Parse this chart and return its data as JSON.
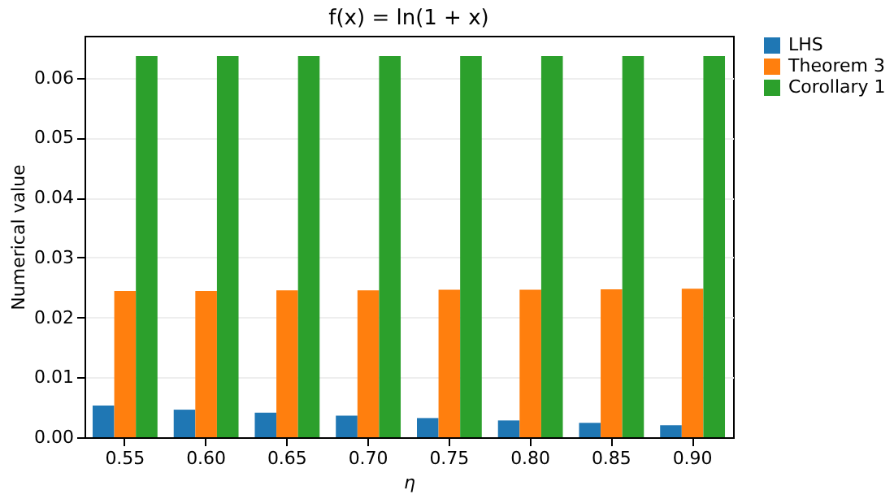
{
  "chart_data": {
    "type": "bar",
    "title": "f(x) = ln(1 + x)",
    "xlabel": "η",
    "ylabel": "Numerical value",
    "categories": [
      "0.55",
      "0.60",
      "0.65",
      "0.70",
      "0.75",
      "0.80",
      "0.85",
      "0.90"
    ],
    "series": [
      {
        "name": "LHS",
        "color": "#1f77b4",
        "values": [
          0.0053,
          0.0046,
          0.0041,
          0.0036,
          0.0032,
          0.0028,
          0.0024,
          0.002
        ]
      },
      {
        "name": "Theorem 3",
        "color": "#ff7f0e",
        "values": [
          0.0244,
          0.0244,
          0.0245,
          0.0245,
          0.0246,
          0.0246,
          0.0247,
          0.0248
        ]
      },
      {
        "name": "Corollary 1",
        "color": "#2ca02c",
        "values": [
          0.0636,
          0.0636,
          0.0636,
          0.0636,
          0.0636,
          0.0636,
          0.0636,
          0.0636
        ]
      }
    ],
    "ylim": [
      0,
      0.067
    ],
    "yticks": [
      {
        "value": 0,
        "label": "0.00"
      },
      0.01,
      0.02,
      0.03,
      0.04,
      0.05,
      0.06
    ],
    "grid": "y",
    "legend": "right"
  }
}
